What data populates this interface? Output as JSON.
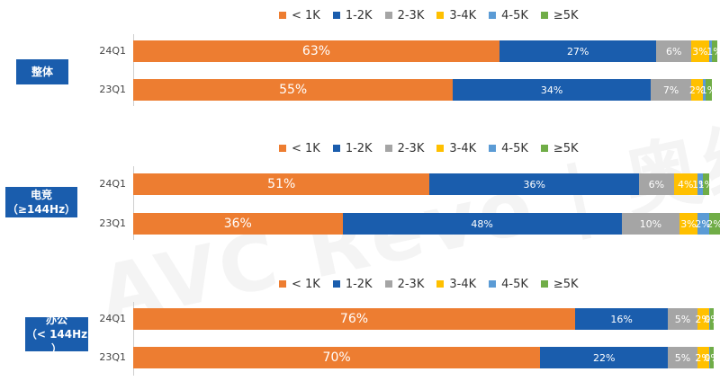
{
  "watermark": "AVC Revo | 奥维睿沃",
  "legend_labels": [
    "< 1K",
    "1-2K",
    "2-3K",
    "3-4K",
    "4-5K",
    "≥5K"
  ],
  "colors": [
    "#ed7d31",
    "#1a5dad",
    "#a5a5a5",
    "#ffc000",
    "#5b9bd5",
    "#70ad47"
  ],
  "chart_data": [
    {
      "type": "bar",
      "stacked": true,
      "orientation": "horizontal",
      "group_label": [
        "整体"
      ],
      "categories": [
        "24Q1",
        "23Q1"
      ],
      "series": [
        {
          "name": "< 1K",
          "values": [
            63,
            55
          ]
        },
        {
          "name": "1-2K",
          "values": [
            27,
            34
          ]
        },
        {
          "name": "2-3K",
          "values": [
            6,
            7
          ]
        },
        {
          "name": "3-4K",
          "values": [
            3,
            2
          ]
        },
        {
          "name": "4-5K",
          "values": [
            0.5,
            0.5
          ]
        },
        {
          "name": "≥5K",
          "values": [
            1,
            1
          ]
        }
      ],
      "data_labels": [
        [
          "63%",
          "27%",
          "6%",
          "3%",
          "",
          "1%"
        ],
        [
          "55%",
          "34%",
          "7%",
          "2%",
          "",
          "1%"
        ]
      ],
      "xlim": [
        0,
        100
      ]
    },
    {
      "type": "bar",
      "stacked": true,
      "orientation": "horizontal",
      "group_label": [
        "电竞",
        "（≥144Hz）"
      ],
      "categories": [
        "24Q1",
        "23Q1"
      ],
      "series": [
        {
          "name": "< 1K",
          "values": [
            51,
            36
          ]
        },
        {
          "name": "1-2K",
          "values": [
            36,
            48
          ]
        },
        {
          "name": "2-3K",
          "values": [
            6,
            10
          ]
        },
        {
          "name": "3-4K",
          "values": [
            4,
            3
          ]
        },
        {
          "name": "4-5K",
          "values": [
            1,
            2
          ]
        },
        {
          "name": "≥5K",
          "values": [
            1,
            2
          ]
        }
      ],
      "data_labels": [
        [
          "51%",
          "36%",
          "6%",
          "4%",
          "1%",
          "1%"
        ],
        [
          "36%",
          "48%",
          "10%",
          "3%",
          "2%",
          "2%"
        ]
      ],
      "xlim": [
        0,
        100
      ]
    },
    {
      "type": "bar",
      "stacked": true,
      "orientation": "horizontal",
      "group_label": [
        "办公",
        "（< 144Hz ）"
      ],
      "categories": [
        "24Q1",
        "23Q1"
      ],
      "series": [
        {
          "name": "< 1K",
          "values": [
            76,
            70
          ]
        },
        {
          "name": "1-2K",
          "values": [
            16,
            22
          ]
        },
        {
          "name": "2-3K",
          "values": [
            5,
            5
          ]
        },
        {
          "name": "3-4K",
          "values": [
            2,
            2
          ]
        },
        {
          "name": "4-5K",
          "values": [
            0.3,
            0.3
          ]
        },
        {
          "name": "≥5K",
          "values": [
            0.5,
            0.5
          ]
        }
      ],
      "data_labels": [
        [
          "76%",
          "16%",
          "5%",
          "2%",
          "",
          "0%"
        ],
        [
          "70%",
          "22%",
          "5%",
          "2%",
          "",
          "0%"
        ]
      ],
      "xlim": [
        0,
        100
      ]
    }
  ]
}
